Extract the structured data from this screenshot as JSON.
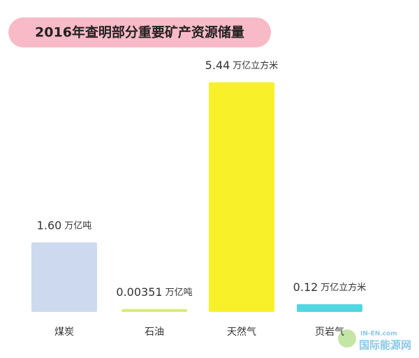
{
  "chart_data": {
    "type": "bar",
    "title": "2016年查明部分重要矿产资源储量",
    "categories": [
      "煤炭",
      "石油",
      "天然气",
      "页岩气"
    ],
    "values": [
      1.6,
      0.00351,
      5.44,
      0.12
    ],
    "value_labels": [
      "1.60",
      "0.00351",
      "5.44",
      "0.12"
    ],
    "units": [
      "万亿吨",
      "万亿吨",
      "万亿立方米",
      "万亿立方米"
    ],
    "colors": [
      "#cdd9ee",
      "#d8ec78",
      "#f8f12a",
      "#52d6df"
    ]
  },
  "watermark": {
    "domain": "IN-EN.com",
    "name": "国际能源网"
  }
}
